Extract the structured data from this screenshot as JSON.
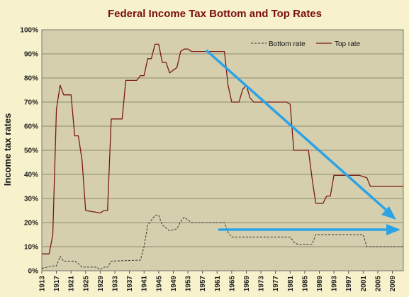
{
  "chart_data": {
    "type": "line",
    "title": "Federal Income  Tax Bottom and Top Rates",
    "ylabel": "Income tax rates",
    "xlabel": "",
    "xlim": [
      1913,
      2012
    ],
    "ylim": [
      0,
      100
    ],
    "grid": true,
    "legend_position": "top-right",
    "y_ticks": [
      "0%",
      "10%",
      "20%",
      "30%",
      "40%",
      "50%",
      "60%",
      "70%",
      "80%",
      "90%",
      "100%"
    ],
    "x_ticks": [
      "1913",
      "1917",
      "1921",
      "1925",
      "1929",
      "1933",
      "1937",
      "1941",
      "1945",
      "1949",
      "1953",
      "1957",
      "1961",
      "1965",
      "1969",
      "1973",
      "1977",
      "1981",
      "1985",
      "1989",
      "1993",
      "1997",
      "2001",
      "2005",
      "2009"
    ],
    "series": [
      {
        "name": "Bottom rate",
        "style": "dashed",
        "color": "#333333",
        "points": [
          [
            1913,
            1
          ],
          [
            1916,
            2
          ],
          [
            1917,
            2
          ],
          [
            1918,
            6
          ],
          [
            1919,
            4
          ],
          [
            1922,
            4
          ],
          [
            1923,
            3
          ],
          [
            1924,
            1.5
          ],
          [
            1925,
            1.5
          ],
          [
            1928,
            1.5
          ],
          [
            1929,
            0.5
          ],
          [
            1930,
            1.5
          ],
          [
            1931,
            1.5
          ],
          [
            1932,
            4
          ],
          [
            1940,
            4.4
          ],
          [
            1941,
            10
          ],
          [
            1942,
            19
          ],
          [
            1944,
            23
          ],
          [
            1945,
            23
          ],
          [
            1946,
            19
          ],
          [
            1948,
            16.6
          ],
          [
            1950,
            17.4
          ],
          [
            1951,
            20.4
          ],
          [
            1952,
            22.2
          ],
          [
            1954,
            20
          ],
          [
            1963,
            20
          ],
          [
            1964,
            16
          ],
          [
            1965,
            14
          ],
          [
            1971,
            14
          ],
          [
            1972,
            14
          ],
          [
            1981,
            14
          ],
          [
            1982,
            12
          ],
          [
            1983,
            11
          ],
          [
            1987,
            11
          ],
          [
            1988,
            15
          ],
          [
            2000,
            15
          ],
          [
            2001,
            15
          ],
          [
            2002,
            10
          ],
          [
            2012,
            10
          ]
        ]
      },
      {
        "name": "Top rate",
        "style": "solid",
        "color": "#7a1a12",
        "points": [
          [
            1913,
            7
          ],
          [
            1915,
            7
          ],
          [
            1916,
            15
          ],
          [
            1917,
            67
          ],
          [
            1918,
            77
          ],
          [
            1919,
            73
          ],
          [
            1921,
            73
          ],
          [
            1922,
            56
          ],
          [
            1923,
            56
          ],
          [
            1924,
            46
          ],
          [
            1925,
            25
          ],
          [
            1929,
            24
          ],
          [
            1930,
            25
          ],
          [
            1931,
            25
          ],
          [
            1932,
            63
          ],
          [
            1935,
            63
          ],
          [
            1936,
            79
          ],
          [
            1939,
            79
          ],
          [
            1940,
            81
          ],
          [
            1941,
            81
          ],
          [
            1942,
            88
          ],
          [
            1943,
            88
          ],
          [
            1944,
            94
          ],
          [
            1945,
            94
          ],
          [
            1946,
            86.45
          ],
          [
            1947,
            86.45
          ],
          [
            1948,
            82.13
          ],
          [
            1950,
            84.36
          ],
          [
            1951,
            91
          ],
          [
            1952,
            92
          ],
          [
            1953,
            92
          ],
          [
            1954,
            91
          ],
          [
            1963,
            91
          ],
          [
            1964,
            77
          ],
          [
            1965,
            70
          ],
          [
            1967,
            70
          ],
          [
            1968,
            75.25
          ],
          [
            1969,
            77
          ],
          [
            1970,
            71.75
          ],
          [
            1971,
            70
          ],
          [
            1980,
            70
          ],
          [
            1981,
            69.13
          ],
          [
            1982,
            50
          ],
          [
            1986,
            50
          ],
          [
            1987,
            38.5
          ],
          [
            1988,
            28
          ],
          [
            1990,
            28
          ],
          [
            1991,
            31
          ],
          [
            1992,
            31
          ],
          [
            1993,
            39.6
          ],
          [
            2000,
            39.6
          ],
          [
            2001,
            39.1
          ],
          [
            2002,
            38.6
          ],
          [
            2003,
            35
          ],
          [
            2012,
            35
          ]
        ]
      }
    ]
  }
}
